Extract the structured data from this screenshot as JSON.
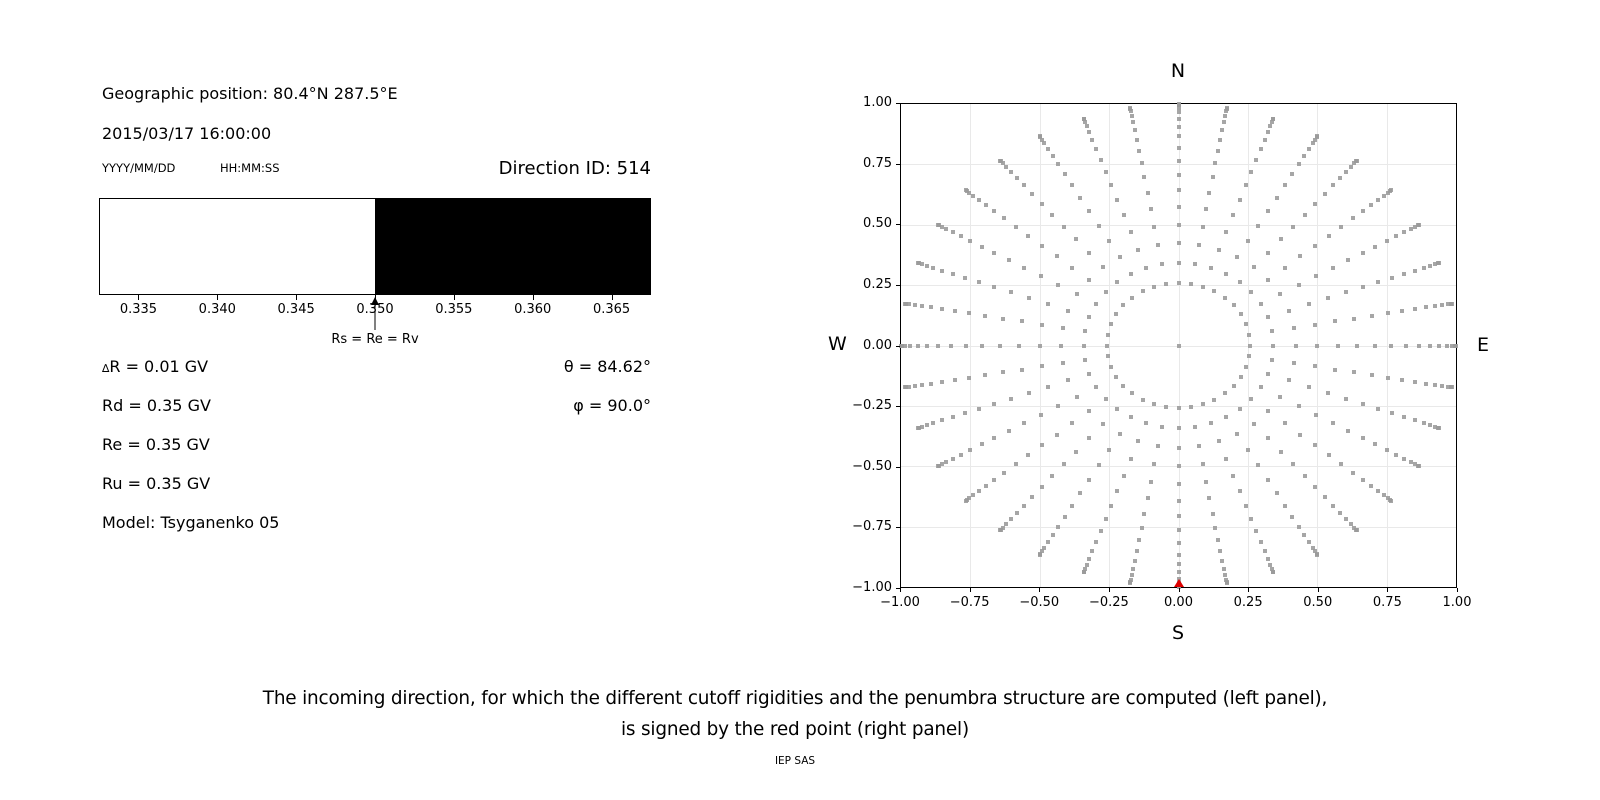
{
  "header": {
    "geo_position": "Geographic position: 80.4°N 287.5°E",
    "datetime": "2015/03/17 16:00:00",
    "date_format_label": "YYYY/MM/DD",
    "time_format_label": "HH:MM:SS",
    "direction_id": "Direction ID: 514"
  },
  "info": {
    "delta_symbol": "∆",
    "delta_rest": "R = 0.01 GV",
    "rd": "Rd = 0.35 GV",
    "re": "Re = 0.35 GV",
    "ru": "Ru = 0.35 GV",
    "model": "Model: Tsyganenko 05",
    "theta": "θ = 84.62°",
    "phi": "φ = 90.0°"
  },
  "chart_data": [
    {
      "type": "bar",
      "title": "penumbra structure strip",
      "xlim": [
        0.3325,
        0.3675
      ],
      "segments": [
        {
          "from": 0.3325,
          "to": 0.35,
          "color": "#ffffff"
        },
        {
          "from": 0.35,
          "to": 0.3675,
          "color": "#000000"
        }
      ],
      "ticks": [
        {
          "value": 0.335,
          "label": "0.335"
        },
        {
          "value": 0.34,
          "label": "0.340"
        },
        {
          "value": 0.345,
          "label": "0.345"
        },
        {
          "value": 0.35,
          "label": "0.350"
        },
        {
          "value": 0.355,
          "label": "0.355"
        },
        {
          "value": 0.36,
          "label": "0.360"
        },
        {
          "value": 0.365,
          "label": "0.365"
        }
      ],
      "annotation": {
        "x": 0.35,
        "label": "Rs = Re = Rv"
      }
    },
    {
      "type": "scatter",
      "title": "incoming direction grid",
      "xlim": [
        -1.0,
        1.0
      ],
      "ylim": [
        -1.0,
        1.0
      ],
      "grid_on": true,
      "x_ticks": [
        {
          "value": -1.0,
          "label": "−1.00"
        },
        {
          "value": -0.75,
          "label": "−0.75"
        },
        {
          "value": -0.5,
          "label": "−0.50"
        },
        {
          "value": -0.25,
          "label": "−0.25"
        },
        {
          "value": 0.0,
          "label": "0.00"
        },
        {
          "value": 0.25,
          "label": "0.25"
        },
        {
          "value": 0.5,
          "label": "0.50"
        },
        {
          "value": 0.75,
          "label": "0.75"
        },
        {
          "value": 1.0,
          "label": "1.00"
        }
      ],
      "y_ticks": [
        {
          "value": -1.0,
          "label": "−1.00"
        },
        {
          "value": -0.75,
          "label": "−0.75"
        },
        {
          "value": -0.5,
          "label": "−0.50"
        },
        {
          "value": -0.25,
          "label": "−0.25"
        },
        {
          "value": 0.0,
          "label": "0.00"
        },
        {
          "value": 0.25,
          "label": "0.25"
        },
        {
          "value": 0.5,
          "label": "0.50"
        },
        {
          "value": 0.75,
          "label": "0.75"
        },
        {
          "value": 1.0,
          "label": "1.00"
        }
      ],
      "compass": {
        "top": "N",
        "bottom": "S",
        "left": "W",
        "right": "E"
      },
      "direction_grid": {
        "azimuth_step_deg": 10,
        "zenith_min_deg": 15,
        "zenith_max_deg": 90,
        "zenith_step_deg": 5,
        "radius_rule": "sin(zenith)",
        "center_point": true
      },
      "dot_color": "#9a9a9a",
      "red_point": {
        "x": 0.0,
        "y": -0.996,
        "color": "#dd0000"
      }
    }
  ],
  "caption": {
    "line1": "The incoming direction, for which the different cutoff rigidities and the penumbra structure are computed (left panel),",
    "line2": "is signed by the red point (right panel)",
    "credit": "IEP SAS"
  }
}
